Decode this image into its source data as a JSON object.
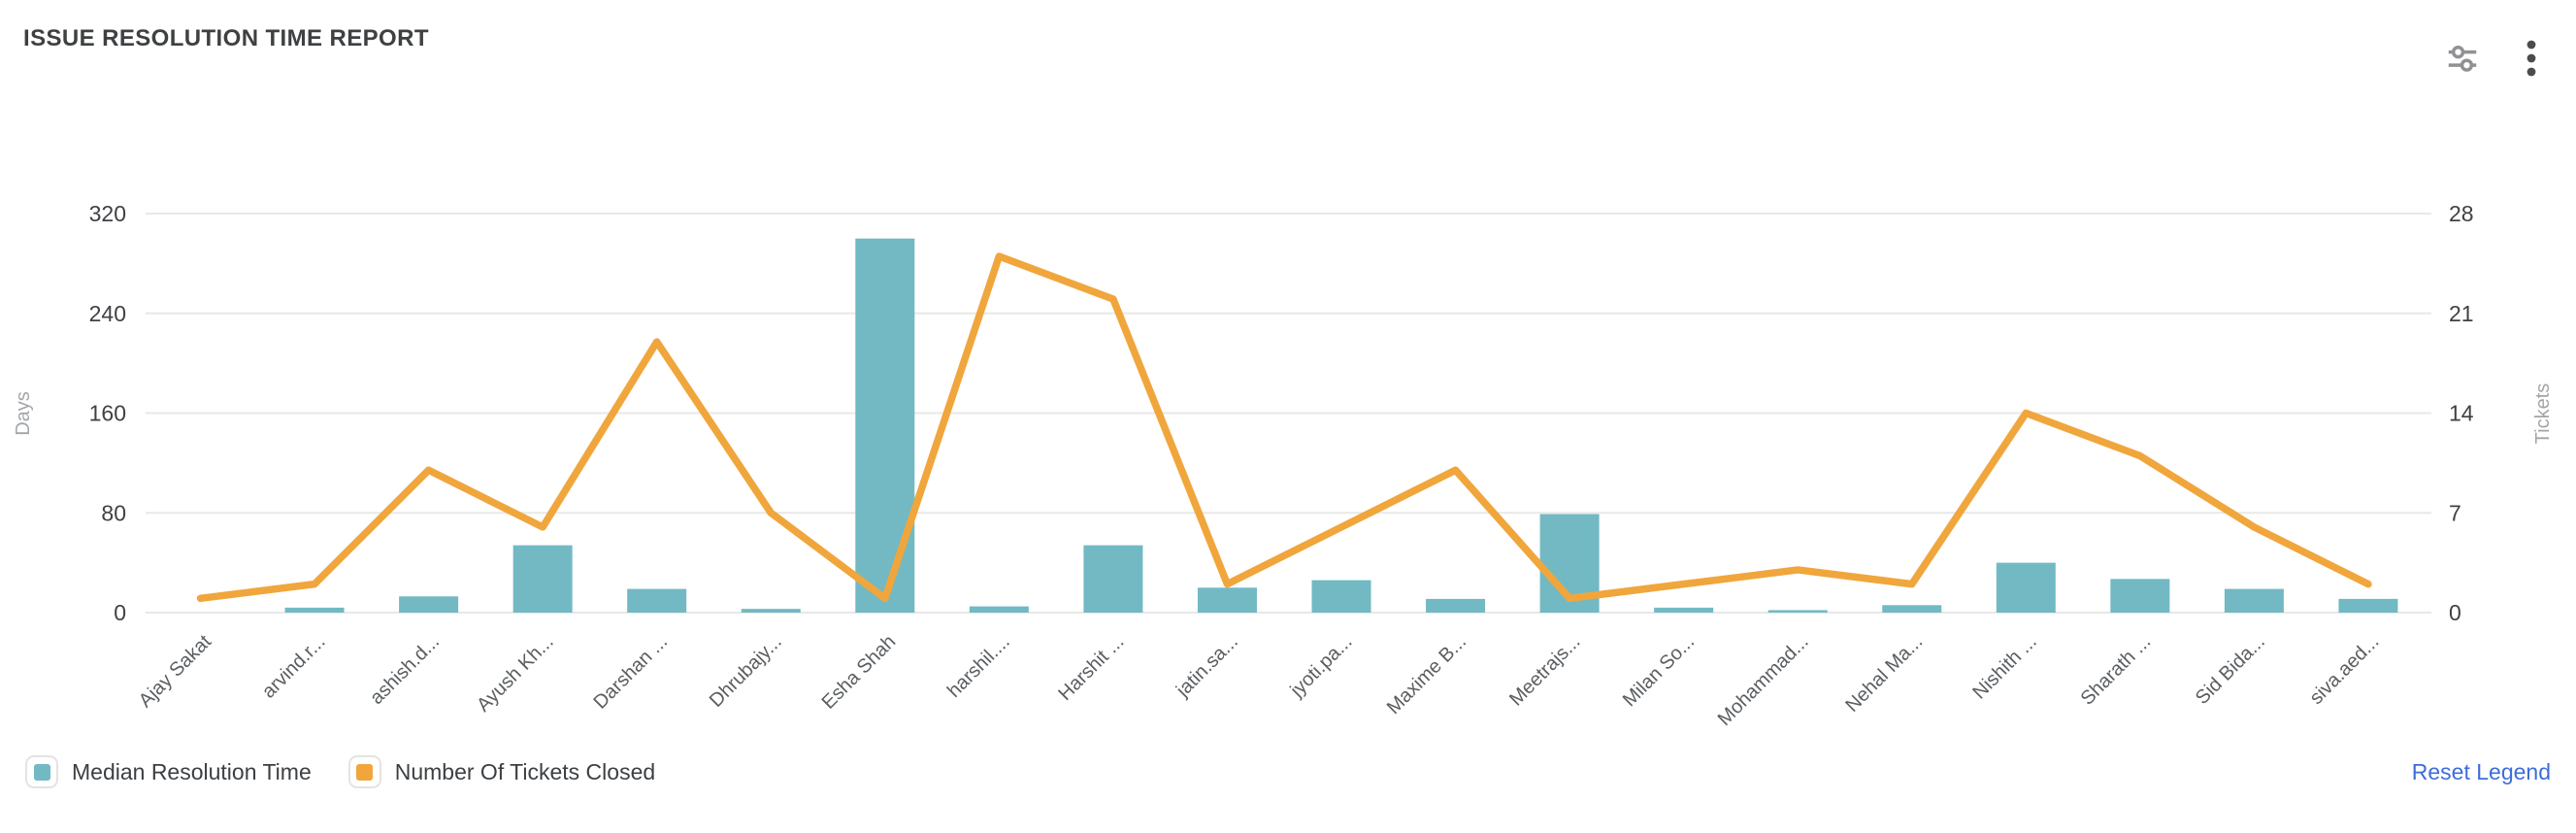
{
  "header": {
    "title": "ISSUE RESOLUTION TIME REPORT",
    "icons": [
      "filter-sliders-icon",
      "more-options-icon"
    ]
  },
  "chart_data": {
    "type": "bar",
    "subtype": "combo-bar-line-dual-axis",
    "title": "ISSUE RESOLUTION TIME REPORT",
    "categories": [
      "Ajay Sakat",
      "arvind.r...",
      "ashish.d...",
      "Ayush Kh...",
      "Darshan ...",
      "Dhrubajy...",
      "Esha Shah",
      "harshil....",
      "Harshit ...",
      "jatin.sa...",
      "jyoti.pa...",
      "Maxime B...",
      "Meetrajs...",
      "Milan So...",
      "Mohammad...",
      "Nehal Ma...",
      "Nishith ...",
      "Sharath ...",
      "Sid Bida...",
      "siva.aed..."
    ],
    "series": [
      {
        "name": "Median Resolution Time",
        "type": "bar",
        "axis": "left",
        "unit": "Days",
        "color": "#72b9c3",
        "values": [
          0,
          4,
          13,
          54,
          19,
          3,
          300,
          5,
          54,
          20,
          26,
          11,
          79,
          4,
          2,
          6,
          40,
          27,
          19,
          11
        ]
      },
      {
        "name": "Number Of Tickets Closed",
        "type": "line",
        "axis": "right",
        "unit": "Tickets",
        "color": "#f0a63c",
        "values": [
          1,
          2,
          10,
          6,
          19,
          7,
          1,
          25,
          22,
          2,
          6,
          10,
          1,
          2,
          3,
          2,
          14,
          11,
          6,
          2
        ]
      }
    ],
    "left_axis": {
      "label": "Days",
      "ticks": [
        0,
        80,
        160,
        240,
        320
      ]
    },
    "right_axis": {
      "label": "Tickets",
      "ticks": [
        0,
        7,
        14,
        21,
        28
      ]
    },
    "grid": "horizontal-light",
    "legend_position": "bottom-left"
  },
  "legend": {
    "items": [
      {
        "label": "Median Resolution Time",
        "swatch_color": "#72b9c3"
      },
      {
        "label": "Number Of Tickets Closed",
        "swatch_color": "#f0a63c"
      }
    ]
  },
  "footer": {
    "reset_label": "Reset Legend"
  },
  "colors": {
    "bar": "#72b9c3",
    "line": "#f0a63c",
    "grid": "#e8e8e8",
    "title_text": "#3e4042",
    "axis_tick_text": "#3f4144",
    "x_label_text": "#5b5e61",
    "axis_name_text": "#a2a5a8",
    "reset_link": "#3d6dda"
  }
}
